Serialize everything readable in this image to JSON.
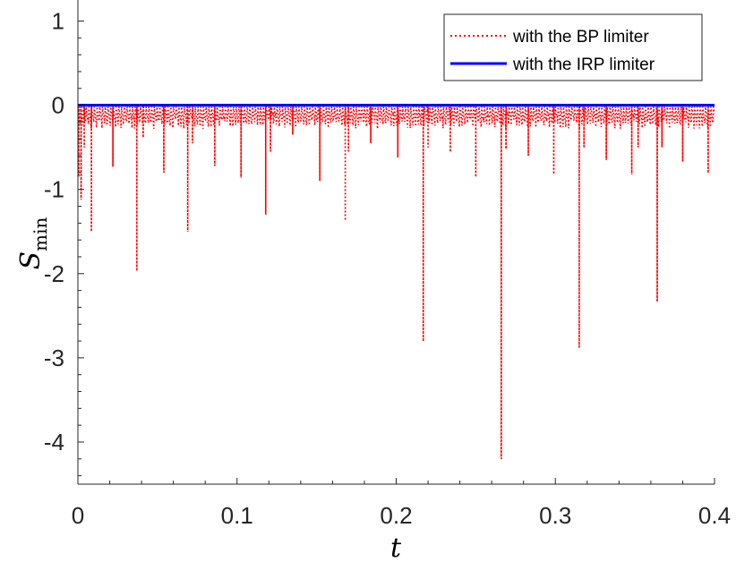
{
  "chart_data": {
    "type": "line",
    "title": "",
    "xlabel": "t",
    "ylabel": {
      "main": "S",
      "sub": "min"
    },
    "xlim": [
      0,
      0.4
    ],
    "ylim": [
      -4.5,
      1.25
    ],
    "xticks": [
      0,
      0.1,
      0.2,
      0.3,
      0.4
    ],
    "xtick_labels": [
      "0",
      "0.1",
      "0.2",
      "0.3",
      "0.4"
    ],
    "yticks": [
      1,
      0,
      -1,
      -2,
      -3,
      -4
    ],
    "ytick_labels": [
      "1",
      "0",
      "-1",
      "-2",
      "-3",
      "-4"
    ],
    "grid": false,
    "legend_position": "top-right",
    "series": [
      {
        "name": "with the BP limiter",
        "color": "#ff0000",
        "style": "dotted",
        "baseline_band": [
          -0.28,
          -0.02
        ],
        "spikes": [
          {
            "x": 0.0005,
            "y": -0.85
          },
          {
            "x": 0.002,
            "y": -1.12
          },
          {
            "x": 0.004,
            "y": -0.5
          },
          {
            "x": 0.0085,
            "y": -1.5
          },
          {
            "x": 0.022,
            "y": -0.73
          },
          {
            "x": 0.037,
            "y": -1.97
          },
          {
            "x": 0.041,
            "y": -0.38
          },
          {
            "x": 0.054,
            "y": -0.8
          },
          {
            "x": 0.069,
            "y": -1.5
          },
          {
            "x": 0.072,
            "y": -0.45
          },
          {
            "x": 0.086,
            "y": -0.72
          },
          {
            "x": 0.1025,
            "y": -0.86
          },
          {
            "x": 0.118,
            "y": -1.3
          },
          {
            "x": 0.121,
            "y": -0.55
          },
          {
            "x": 0.135,
            "y": -0.35
          },
          {
            "x": 0.152,
            "y": -0.9
          },
          {
            "x": 0.168,
            "y": -1.37
          },
          {
            "x": 0.17,
            "y": -0.55
          },
          {
            "x": 0.184,
            "y": -0.45
          },
          {
            "x": 0.201,
            "y": -0.62
          },
          {
            "x": 0.217,
            "y": -2.8
          },
          {
            "x": 0.22,
            "y": -0.5
          },
          {
            "x": 0.234,
            "y": -0.55
          },
          {
            "x": 0.25,
            "y": -0.85
          },
          {
            "x": 0.266,
            "y": -4.2
          },
          {
            "x": 0.269,
            "y": -0.52
          },
          {
            "x": 0.283,
            "y": -0.6
          },
          {
            "x": 0.299,
            "y": -0.82
          },
          {
            "x": 0.315,
            "y": -2.88
          },
          {
            "x": 0.318,
            "y": -0.5
          },
          {
            "x": 0.332,
            "y": -0.65
          },
          {
            "x": 0.348,
            "y": -0.82
          },
          {
            "x": 0.352,
            "y": -0.5
          },
          {
            "x": 0.364,
            "y": -2.33
          },
          {
            "x": 0.367,
            "y": -0.5
          },
          {
            "x": 0.38,
            "y": -0.67
          },
          {
            "x": 0.396,
            "y": -0.8
          }
        ]
      },
      {
        "name": "with the IRP limiter",
        "color": "#0000ff",
        "style": "solid",
        "x": [
          0,
          0.4
        ],
        "y": [
          0,
          0
        ]
      }
    ]
  }
}
